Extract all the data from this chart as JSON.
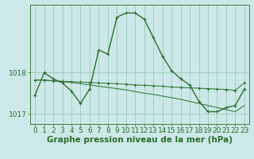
{
  "background_color": "#cce8e8",
  "grid_color": "#99ccbb",
  "line_color": "#2d6e2d",
  "xlabel": "Graphe pression niveau de la mer (hPa)",
  "xlabel_fontsize": 7.5,
  "tick_fontsize": 6.5,
  "ylim": [
    1016.75,
    1019.65
  ],
  "xlim": [
    -0.5,
    23.5
  ],
  "yticks": [
    1017.0,
    1018.0
  ],
  "xticks": [
    0,
    1,
    2,
    3,
    4,
    5,
    6,
    7,
    8,
    9,
    10,
    11,
    12,
    13,
    14,
    15,
    16,
    17,
    18,
    19,
    20,
    21,
    22,
    23
  ],
  "series1_x": [
    0,
    1,
    2,
    3,
    4,
    5,
    6,
    7,
    8,
    9,
    10,
    11,
    12,
    13,
    14,
    15,
    16,
    17,
    18,
    19,
    20,
    21,
    22,
    23
  ],
  "series1_y": [
    1017.45,
    1018.0,
    1017.85,
    1017.75,
    1017.55,
    1017.25,
    1017.6,
    1018.55,
    1018.45,
    1019.35,
    1019.45,
    1019.45,
    1019.3,
    1018.85,
    1018.4,
    1018.05,
    1017.85,
    1017.7,
    1017.3,
    1017.05,
    1017.05,
    1017.15,
    1017.2,
    1017.6
  ],
  "series2_x": [
    0,
    1,
    2,
    3,
    4,
    5,
    6,
    7,
    8,
    9,
    10,
    11,
    12,
    13,
    14,
    15,
    16,
    17,
    18,
    19,
    20,
    21,
    22,
    23
  ],
  "series2_y": [
    1017.82,
    1017.82,
    1017.8,
    1017.79,
    1017.78,
    1017.77,
    1017.76,
    1017.75,
    1017.74,
    1017.73,
    1017.72,
    1017.7,
    1017.69,
    1017.68,
    1017.67,
    1017.65,
    1017.64,
    1017.63,
    1017.62,
    1017.61,
    1017.6,
    1017.59,
    1017.57,
    1017.75
  ],
  "series3_x": [
    0,
    1,
    2,
    3,
    4,
    5,
    6,
    7,
    8,
    9,
    10,
    11,
    12,
    13,
    14,
    15,
    16,
    17,
    18,
    19,
    20,
    21,
    22,
    23
  ],
  "series3_y": [
    1017.82,
    1017.82,
    1017.8,
    1017.78,
    1017.76,
    1017.73,
    1017.7,
    1017.67,
    1017.64,
    1017.61,
    1017.58,
    1017.54,
    1017.5,
    1017.47,
    1017.43,
    1017.39,
    1017.35,
    1017.3,
    1017.25,
    1017.2,
    1017.15,
    1017.1,
    1017.05,
    1017.2
  ]
}
